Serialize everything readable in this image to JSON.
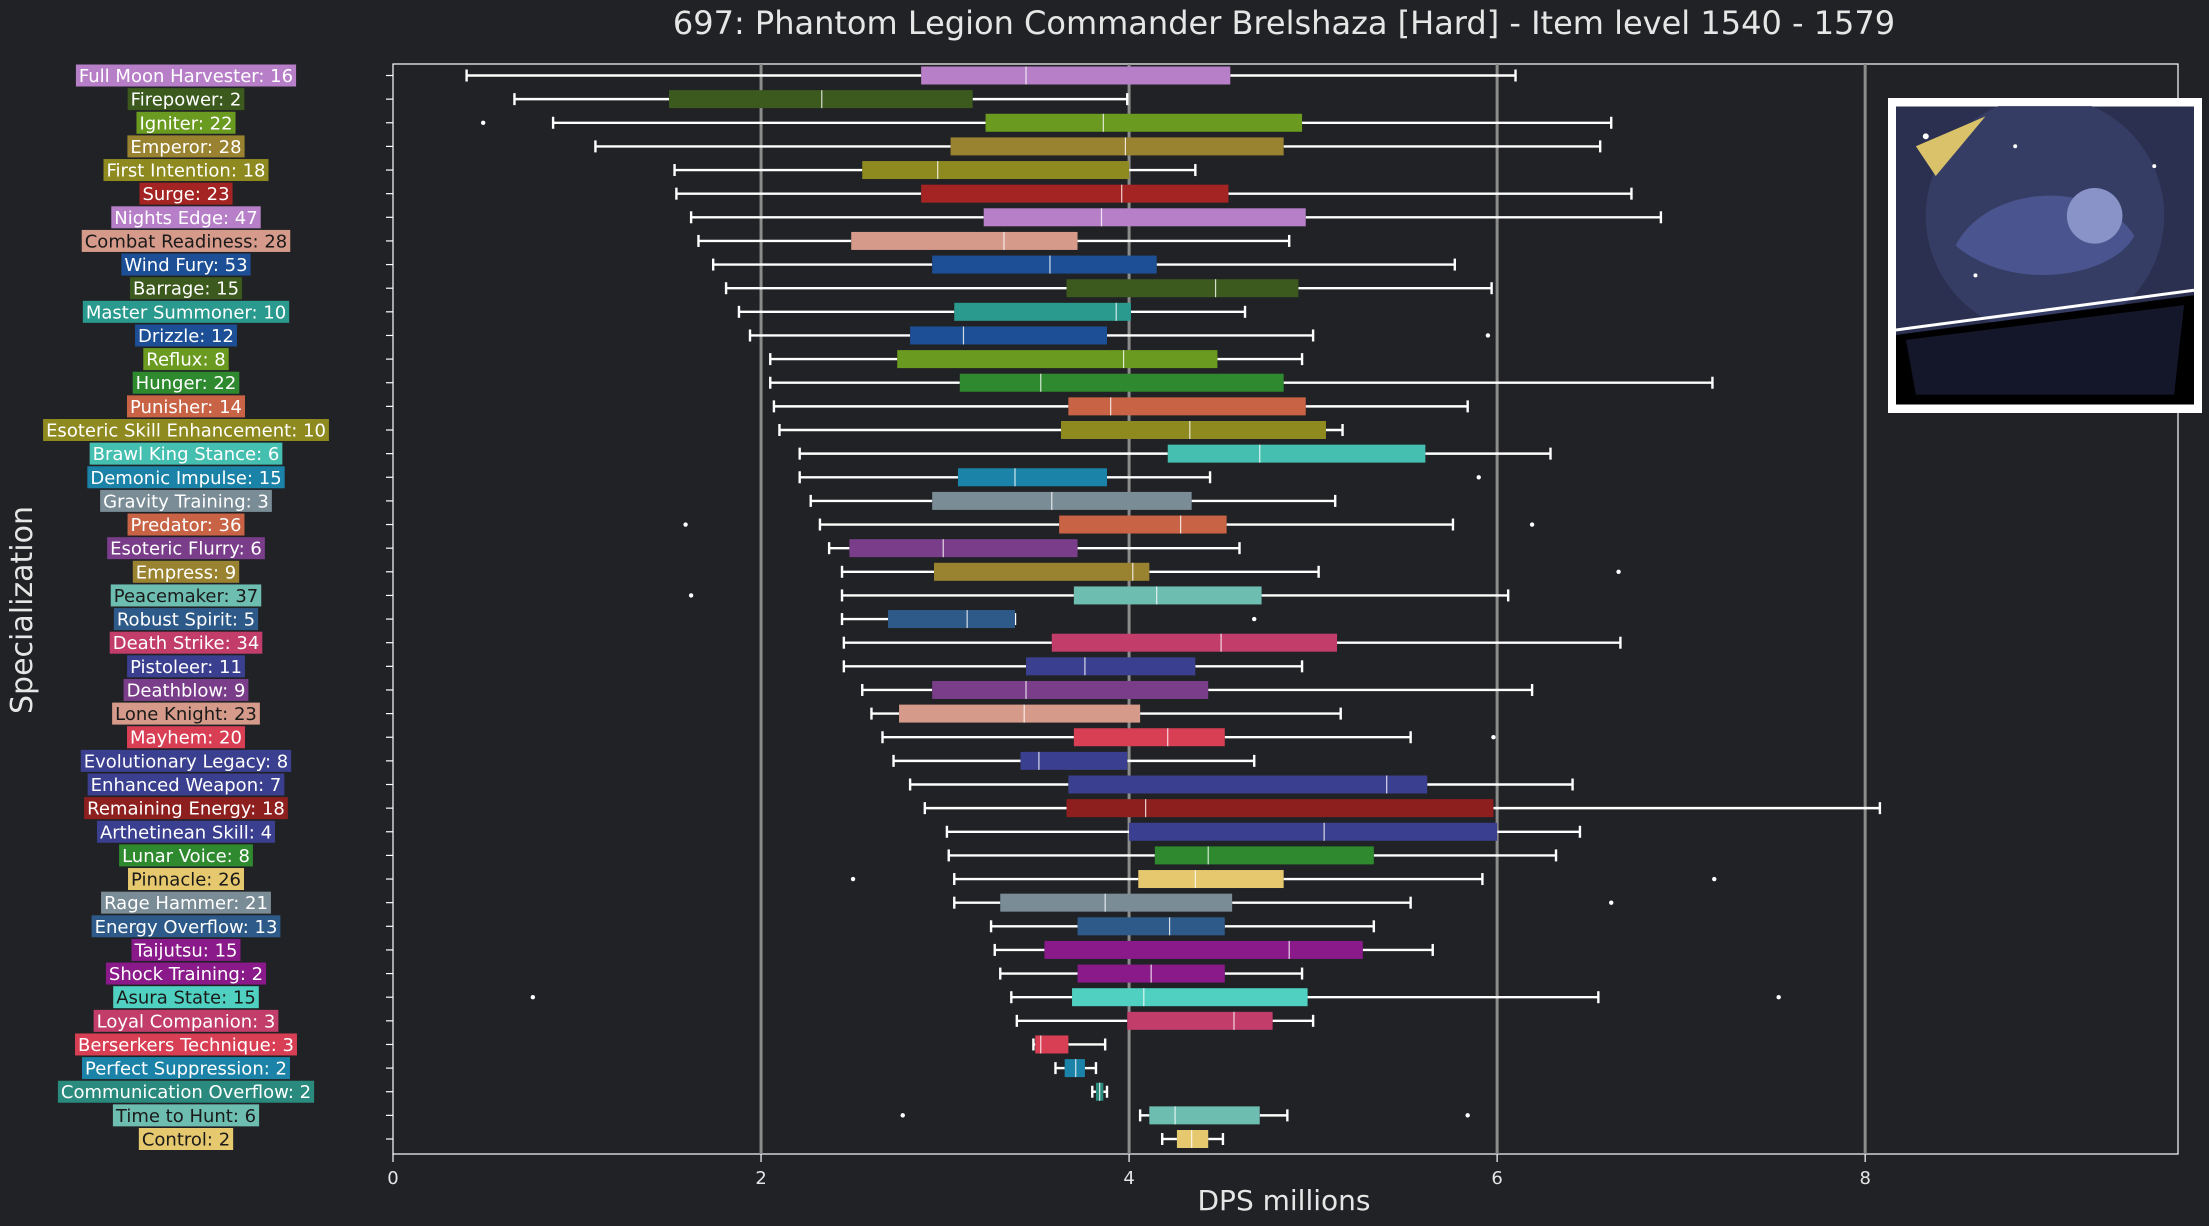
{
  "chart_data": {
    "type": "box",
    "title": "697: Phantom Legion Commander Brelshaza [Hard] - Item level 1540 - 1579",
    "xlabel": "DPS millions",
    "ylabel": "Specialization",
    "xlim": [
      0,
      9.7
    ],
    "xticks": [
      0,
      2,
      4,
      6,
      8
    ],
    "grid": "vertical lines at x = 2, 4, 6, 8",
    "series": [
      {
        "label": "Full Moon Harvester: 16",
        "color": "#b87fc9",
        "whisker_low": 0.4,
        "q1": 2.87,
        "median": 3.44,
        "q3": 4.55,
        "whisker_high": 6.1,
        "outliers": []
      },
      {
        "label": "Firepower: 2",
        "color": "#3c5a1e",
        "whisker_low": 0.66,
        "q1": 1.5,
        "median": 2.33,
        "q3": 3.15,
        "whisker_high": 3.99,
        "outliers": []
      },
      {
        "label": "Igniter: 22",
        "color": "#6a9a1f",
        "whisker_low": 0.87,
        "q1": 3.22,
        "median": 3.86,
        "q3": 4.94,
        "whisker_high": 6.62,
        "outliers": [
          0.49
        ]
      },
      {
        "label": "Emperor: 28",
        "color": "#9a8330",
        "whisker_low": 1.1,
        "q1": 3.03,
        "median": 3.98,
        "q3": 4.84,
        "whisker_high": 6.56,
        "outliers": []
      },
      {
        "label": "First Intention: 18",
        "color": "#8e8a20",
        "whisker_low": 1.53,
        "q1": 2.55,
        "median": 2.96,
        "q3": 4.0,
        "whisker_high": 4.36,
        "outliers": []
      },
      {
        "label": "Surge: 23",
        "color": "#a32422",
        "whisker_low": 1.54,
        "q1": 2.87,
        "median": 3.96,
        "q3": 4.54,
        "whisker_high": 6.73,
        "outliers": []
      },
      {
        "label": "Nights Edge: 47",
        "color": "#b87fc9",
        "whisker_low": 1.62,
        "q1": 3.21,
        "median": 3.85,
        "q3": 4.96,
        "whisker_high": 6.89,
        "outliers": []
      },
      {
        "label": "Combat Readiness: 28",
        "color": "#d59a8a",
        "whisker_low": 1.66,
        "q1": 2.49,
        "median": 3.32,
        "q3": 3.72,
        "whisker_high": 4.87,
        "outliers": []
      },
      {
        "label": "Wind Fury: 53",
        "color": "#1c4f96",
        "whisker_low": 1.74,
        "q1": 2.93,
        "median": 3.57,
        "q3": 4.15,
        "whisker_high": 5.77,
        "outliers": []
      },
      {
        "label": "Barrage: 15",
        "color": "#3c5a1e",
        "whisker_low": 1.81,
        "q1": 3.66,
        "median": 4.47,
        "q3": 4.92,
        "whisker_high": 5.97,
        "outliers": []
      },
      {
        "label": "Master Summoner: 10",
        "color": "#2a9a8e",
        "whisker_low": 1.88,
        "q1": 3.05,
        "median": 3.93,
        "q3": 4.01,
        "whisker_high": 4.63,
        "outliers": []
      },
      {
        "label": "Drizzle: 12",
        "color": "#1c4f96",
        "whisker_low": 1.94,
        "q1": 2.81,
        "median": 3.1,
        "q3": 3.88,
        "whisker_high": 5.0,
        "outliers": [
          5.95
        ]
      },
      {
        "label": "Reflux: 8",
        "color": "#6a9a1f",
        "whisker_low": 2.05,
        "q1": 2.74,
        "median": 3.97,
        "q3": 4.48,
        "whisker_high": 4.94,
        "outliers": []
      },
      {
        "label": "Hunger: 22",
        "color": "#2f8a2f",
        "whisker_low": 2.05,
        "q1": 3.08,
        "median": 3.52,
        "q3": 4.84,
        "whisker_high": 7.17,
        "outliers": []
      },
      {
        "label": "Punisher: 14",
        "color": "#c86445",
        "whisker_low": 2.07,
        "q1": 3.67,
        "median": 3.9,
        "q3": 4.96,
        "whisker_high": 5.84,
        "outliers": []
      },
      {
        "label": "Esoteric Skill Enhancement: 10",
        "color": "#8e8a20",
        "whisker_low": 2.1,
        "q1": 3.63,
        "median": 4.33,
        "q3": 5.07,
        "whisker_high": 5.16,
        "outliers": []
      },
      {
        "label": "Brawl King Stance: 6",
        "color": "#45bfb0",
        "whisker_low": 2.21,
        "q1": 4.21,
        "median": 4.71,
        "q3": 5.61,
        "whisker_high": 6.29,
        "outliers": []
      },
      {
        "label": "Demonic Impulse: 15",
        "color": "#1b83a8",
        "whisker_low": 2.21,
        "q1": 3.07,
        "median": 3.38,
        "q3": 3.88,
        "whisker_high": 4.44,
        "outliers": [
          5.9
        ]
      },
      {
        "label": "Gravity Training: 3",
        "color": "#7a8c96",
        "whisker_low": 2.27,
        "q1": 2.93,
        "median": 3.58,
        "q3": 4.34,
        "whisker_high": 5.12,
        "outliers": []
      },
      {
        "label": "Predator: 36",
        "color": "#c86445",
        "whisker_low": 2.32,
        "q1": 3.62,
        "median": 4.28,
        "q3": 4.53,
        "whisker_high": 5.76,
        "outliers": [
          1.59,
          6.19
        ]
      },
      {
        "label": "Esoteric Flurry: 6",
        "color": "#7a3d8a",
        "whisker_low": 2.37,
        "q1": 2.48,
        "median": 2.99,
        "q3": 3.72,
        "whisker_high": 4.6,
        "outliers": []
      },
      {
        "label": "Empress: 9",
        "color": "#9a8330",
        "whisker_low": 2.44,
        "q1": 2.94,
        "median": 4.02,
        "q3": 4.11,
        "whisker_high": 5.03,
        "outliers": [
          6.66
        ]
      },
      {
        "label": "Peacemaker: 37",
        "color": "#6dbdb0",
        "whisker_low": 2.44,
        "q1": 3.7,
        "median": 4.15,
        "q3": 4.72,
        "whisker_high": 6.06,
        "outliers": [
          1.62
        ]
      },
      {
        "label": "Robust Spirit: 5",
        "color": "#2e5a8a",
        "whisker_low": 2.44,
        "q1": 2.69,
        "median": 3.12,
        "q3": 3.38,
        "whisker_high": 3.38,
        "outliers": [
          4.68
        ]
      },
      {
        "label": "Death Strike: 34",
        "color": "#c23d6a",
        "whisker_low": 2.45,
        "q1": 3.58,
        "median": 4.5,
        "q3": 5.13,
        "whisker_high": 6.67,
        "outliers": []
      },
      {
        "label": "Pistoleer: 11",
        "color": "#3b3f8f",
        "whisker_low": 2.45,
        "q1": 3.44,
        "median": 3.76,
        "q3": 4.36,
        "whisker_high": 4.94,
        "outliers": []
      },
      {
        "label": "Deathblow: 9",
        "color": "#7a3d8a",
        "whisker_low": 2.55,
        "q1": 2.93,
        "median": 3.44,
        "q3": 4.43,
        "whisker_high": 6.19,
        "outliers": []
      },
      {
        "label": "Lone Knight: 23",
        "color": "#d59a8a",
        "whisker_low": 2.6,
        "q1": 2.75,
        "median": 3.43,
        "q3": 4.06,
        "whisker_high": 5.15,
        "outliers": []
      },
      {
        "label": "Mayhem: 20",
        "color": "#d93f54",
        "whisker_low": 2.66,
        "q1": 3.7,
        "median": 4.21,
        "q3": 4.52,
        "whisker_high": 5.53,
        "outliers": [
          5.98
        ]
      },
      {
        "label": "Evolutionary Legacy: 8",
        "color": "#3b3f8f",
        "whisker_low": 2.72,
        "q1": 3.41,
        "median": 3.51,
        "q3": 3.99,
        "whisker_high": 4.68,
        "outliers": []
      },
      {
        "label": "Enhanced Weapon: 7",
        "color": "#3b3f8f",
        "whisker_low": 2.81,
        "q1": 3.67,
        "median": 5.4,
        "q3": 5.62,
        "whisker_high": 6.41,
        "outliers": []
      },
      {
        "label": "Remaining Energy: 18",
        "color": "#8e1f1f",
        "whisker_low": 2.89,
        "q1": 3.66,
        "median": 4.09,
        "q3": 5.98,
        "whisker_high": 8.08,
        "outliers": []
      },
      {
        "label": "Arthetinean Skill: 4",
        "color": "#3b3f8f",
        "whisker_low": 3.01,
        "q1": 4.0,
        "median": 5.06,
        "q3": 6.0,
        "whisker_high": 6.45,
        "outliers": []
      },
      {
        "label": "Lunar Voice: 8",
        "color": "#2f8a2f",
        "whisker_low": 3.02,
        "q1": 4.14,
        "median": 4.43,
        "q3": 5.33,
        "whisker_high": 6.32,
        "outliers": []
      },
      {
        "label": "Pinnacle: 26",
        "color": "#e6c86e",
        "whisker_low": 3.05,
        "q1": 4.05,
        "median": 4.36,
        "q3": 4.84,
        "whisker_high": 5.92,
        "outliers": [
          2.5,
          7.18
        ]
      },
      {
        "label": "Rage Hammer: 21",
        "color": "#7a8c96",
        "whisker_low": 3.05,
        "q1": 3.3,
        "median": 3.87,
        "q3": 4.56,
        "whisker_high": 5.53,
        "outliers": [
          6.62
        ]
      },
      {
        "label": "Energy Overflow: 13",
        "color": "#2e5a8a",
        "whisker_low": 3.25,
        "q1": 3.72,
        "median": 4.22,
        "q3": 4.52,
        "whisker_high": 5.33,
        "outliers": []
      },
      {
        "label": "Taijutsu: 15",
        "color": "#8a1a8a",
        "whisker_low": 3.27,
        "q1": 3.54,
        "median": 4.87,
        "q3": 5.27,
        "whisker_high": 5.65,
        "outliers": []
      },
      {
        "label": "Shock Training: 2",
        "color": "#8a1a8a",
        "whisker_low": 3.3,
        "q1": 3.72,
        "median": 4.12,
        "q3": 4.52,
        "whisker_high": 4.94,
        "outliers": []
      },
      {
        "label": "Asura State: 15",
        "color": "#4fd0c0",
        "whisker_low": 3.36,
        "q1": 3.69,
        "median": 4.08,
        "q3": 4.97,
        "whisker_high": 6.55,
        "outliers": [
          0.76,
          7.53
        ]
      },
      {
        "label": "Loyal Companion: 3",
        "color": "#c23d6a",
        "whisker_low": 3.39,
        "q1": 3.99,
        "median": 4.57,
        "q3": 4.78,
        "whisker_high": 5.0,
        "outliers": []
      },
      {
        "label": "Berserkers Technique: 3",
        "color": "#d93f54",
        "whisker_low": 3.48,
        "q1": 3.49,
        "median": 3.52,
        "q3": 3.67,
        "whisker_high": 3.87,
        "outliers": []
      },
      {
        "label": "Perfect Suppression: 2",
        "color": "#1b83a8",
        "whisker_low": 3.6,
        "q1": 3.65,
        "median": 3.71,
        "q3": 3.76,
        "whisker_high": 3.82,
        "outliers": []
      },
      {
        "label": "Communication Overflow: 2",
        "color": "#2a8a7e",
        "whisker_low": 3.8,
        "q1": 3.82,
        "median": 3.84,
        "q3": 3.86,
        "whisker_high": 3.88,
        "outliers": []
      },
      {
        "label": "Time to Hunt: 6",
        "color": "#6dbdb0",
        "whisker_low": 4.06,
        "q1": 4.11,
        "median": 4.25,
        "q3": 4.71,
        "whisker_high": 4.86,
        "outliers": [
          2.77,
          5.84
        ]
      },
      {
        "label": "Control: 2",
        "color": "#e6c86e",
        "whisker_low": 4.18,
        "q1": 4.26,
        "median": 4.34,
        "q3": 4.43,
        "whisker_high": 4.51,
        "outliers": []
      }
    ]
  }
}
